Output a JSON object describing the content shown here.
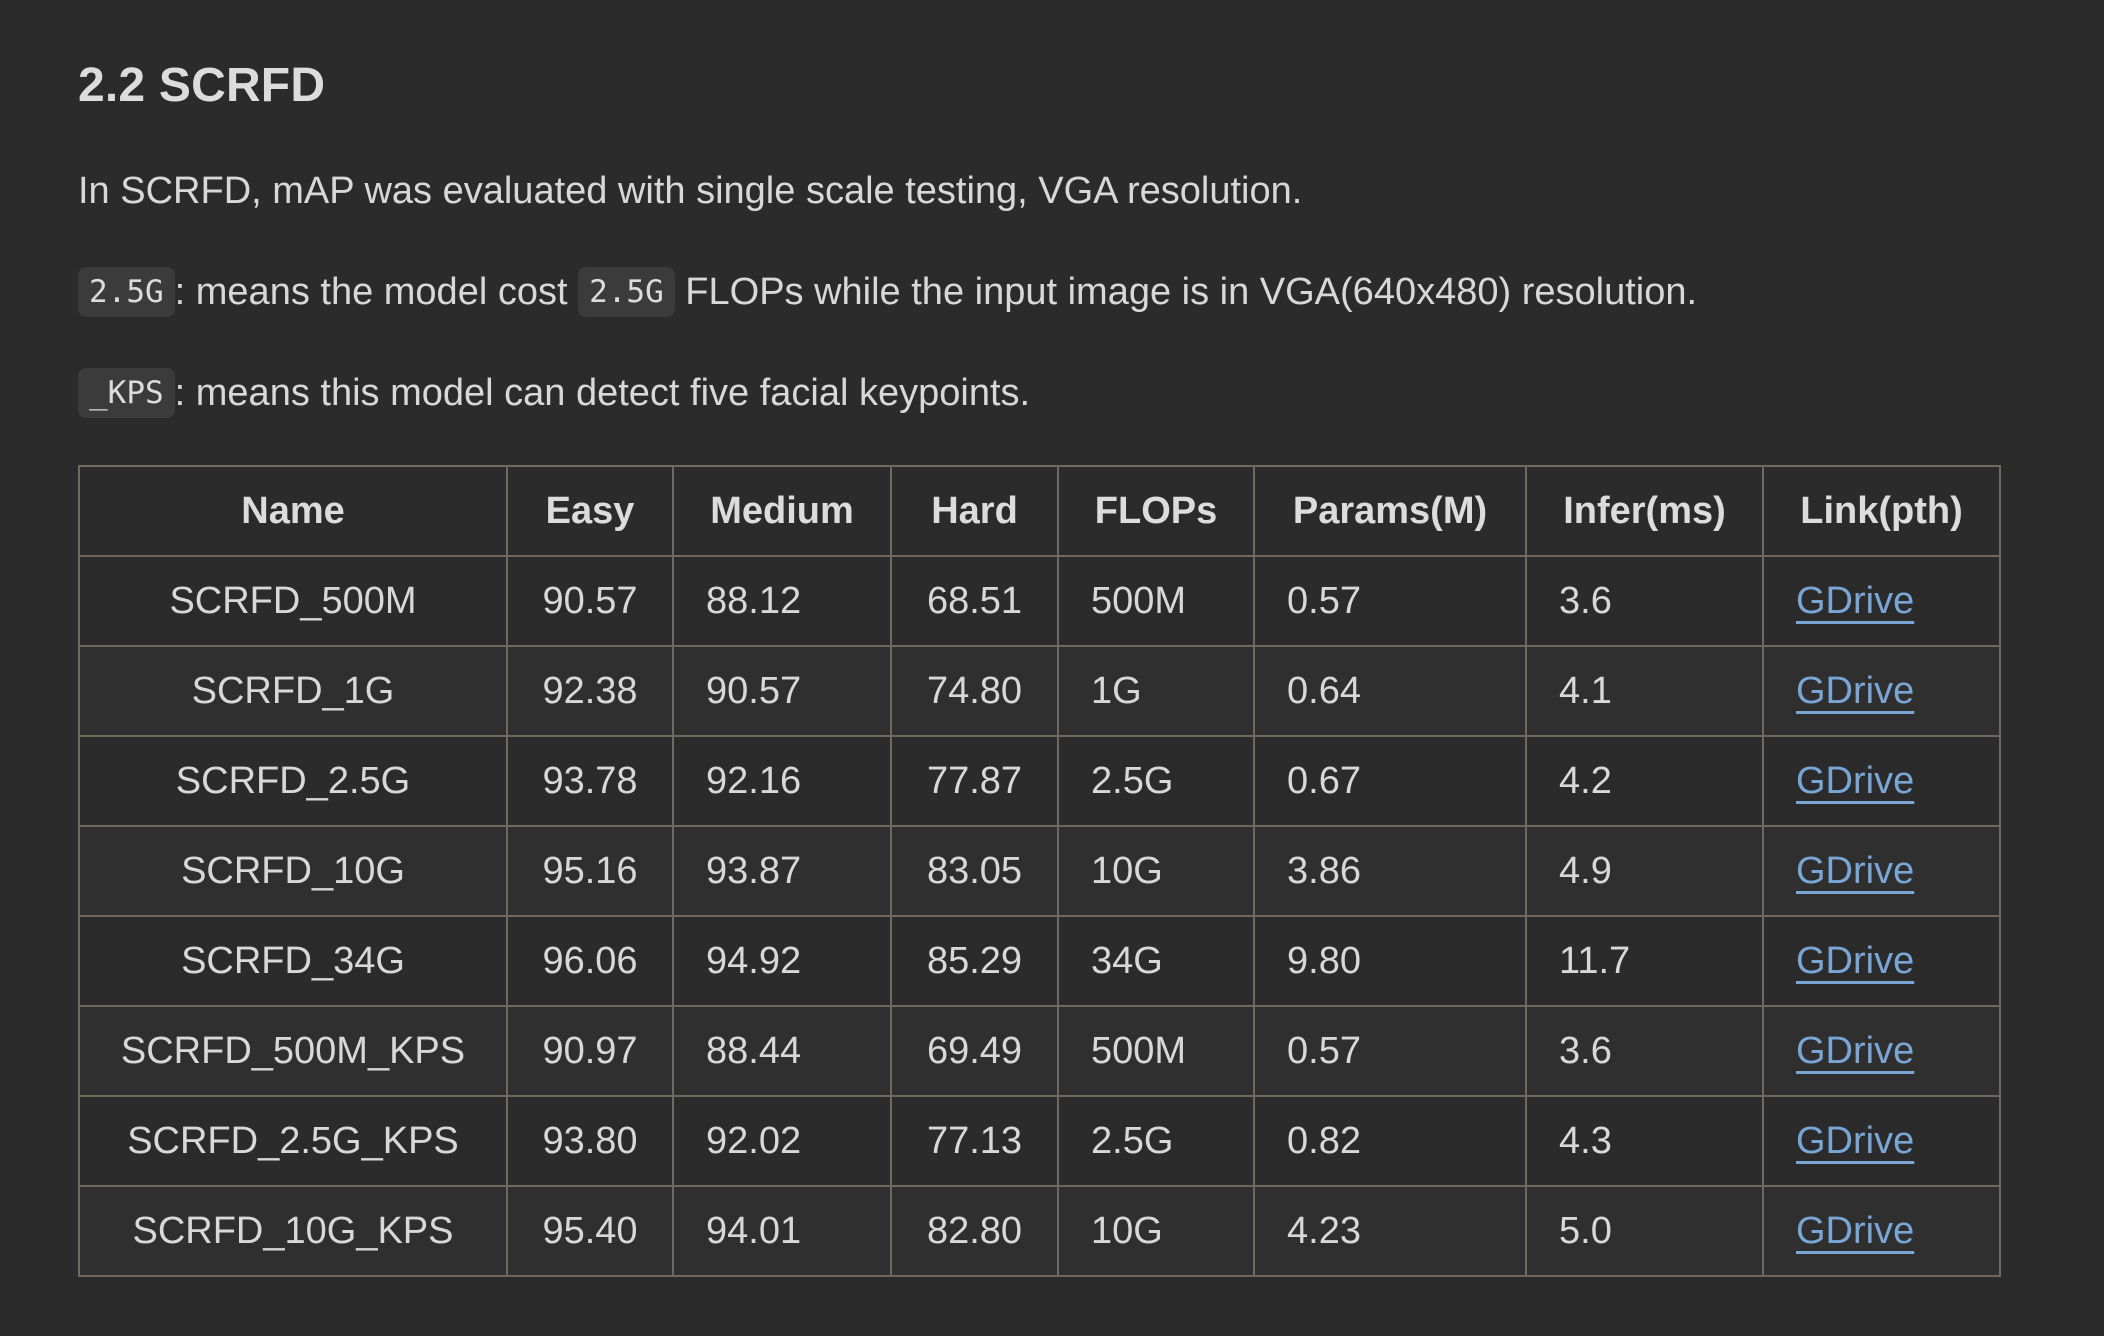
{
  "section": {
    "title": "2.2 SCRFD",
    "intro": "In SCRFD, mAP was evaluated with single scale testing, VGA resolution.",
    "flops_note": {
      "code1": "2.5G",
      "text1": ": means the model cost ",
      "code2": "2.5G",
      "text2": " FLOPs while the input image is in VGA(640x480) resolution."
    },
    "kps_note": {
      "code": "_KPS",
      "text": ": means this model can detect five facial keypoints."
    }
  },
  "table": {
    "headers": [
      "Name",
      "Easy",
      "Medium",
      "Hard",
      "FLOPs",
      "Params(M)",
      "Infer(ms)",
      "Link(pth)"
    ],
    "rows": [
      {
        "name": "SCRFD_500M",
        "easy": "90.57",
        "medium": "88.12",
        "hard": "68.51",
        "flops": "500M",
        "params": "0.57",
        "infer": "3.6",
        "link": "GDrive"
      },
      {
        "name": "SCRFD_1G",
        "easy": "92.38",
        "medium": "90.57",
        "hard": "74.80",
        "flops": "1G",
        "params": "0.64",
        "infer": "4.1",
        "link": "GDrive"
      },
      {
        "name": "SCRFD_2.5G",
        "easy": "93.78",
        "medium": "92.16",
        "hard": "77.87",
        "flops": "2.5G",
        "params": "0.67",
        "infer": "4.2",
        "link": "GDrive"
      },
      {
        "name": "SCRFD_10G",
        "easy": "95.16",
        "medium": "93.87",
        "hard": "83.05",
        "flops": "10G",
        "params": "3.86",
        "infer": "4.9",
        "link": "GDrive"
      },
      {
        "name": "SCRFD_34G",
        "easy": "96.06",
        "medium": "94.92",
        "hard": "85.29",
        "flops": "34G",
        "params": "9.80",
        "infer": "11.7",
        "link": "GDrive"
      },
      {
        "name": "SCRFD_500M_KPS",
        "easy": "90.97",
        "medium": "88.44",
        "hard": "69.49",
        "flops": "500M",
        "params": "0.57",
        "infer": "3.6",
        "link": "GDrive"
      },
      {
        "name": "SCRFD_2.5G_KPS",
        "easy": "93.80",
        "medium": "92.02",
        "hard": "77.13",
        "flops": "2.5G",
        "params": "0.82",
        "infer": "4.3",
        "link": "GDrive"
      },
      {
        "name": "SCRFD_10G_KPS",
        "easy": "95.40",
        "medium": "94.01",
        "hard": "82.80",
        "flops": "10G",
        "params": "4.23",
        "infer": "5.0",
        "link": "GDrive"
      }
    ]
  },
  "colors": {
    "background": "#2b2b2b",
    "text": "#d8d8d8",
    "link": "#7aa6d6",
    "border": "#6e6a5e",
    "code_bg": "#3b3b3b"
  }
}
